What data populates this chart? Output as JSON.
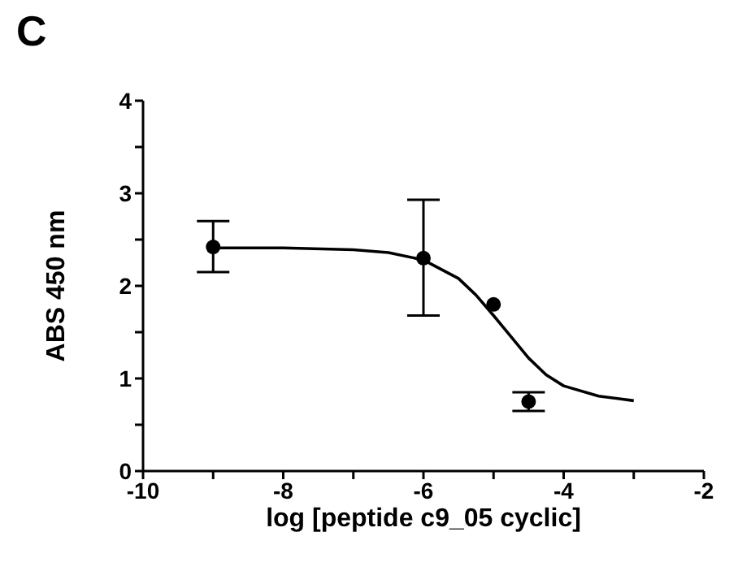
{
  "chart_data": {
    "type": "scatter",
    "xlabel": "log [peptide c9_05 cyclic]",
    "ylabel": "ABS 450 nm",
    "annotations": [
      "C"
    ],
    "xlim": [
      -10,
      -2
    ],
    "xticks": [
      -10,
      {
        "value": -9,
        "label": null
      },
      -8,
      {
        "value": -7,
        "label": null
      },
      -6,
      {
        "value": -5,
        "label": null
      },
      -4,
      {
        "value": -3,
        "label": null
      },
      -2
    ],
    "ylim": [
      0,
      4
    ],
    "yticks": [
      0,
      {
        "value": 0.5,
        "label": null
      },
      1,
      {
        "value": 1.5,
        "label": null
      },
      2,
      {
        "value": 2.5,
        "label": null
      },
      3,
      {
        "value": 3.5,
        "label": null
      },
      4
    ],
    "series": [
      {
        "color": "#000000",
        "marker": "circle",
        "x": [
          -9,
          -6,
          -5,
          -4.5
        ],
        "values": [
          2.42,
          2.3,
          1.8,
          0.75
        ],
        "errors": [
          [
            2.15,
            2.7
          ],
          [
            1.68,
            2.93
          ],
          null,
          [
            0.65,
            0.85
          ]
        ]
      },
      {
        "type": "line",
        "color": "#000000",
        "marker": "none",
        "line_style": "solid",
        "x": [
          -9,
          -8,
          -7,
          -6.5,
          -6,
          -5.5,
          -5.25,
          -5,
          -4.75,
          -4.5,
          -4.25,
          -4,
          -3.5,
          -3
        ],
        "values": [
          2.41,
          2.41,
          2.39,
          2.36,
          2.28,
          2.08,
          1.9,
          1.68,
          1.45,
          1.22,
          1.04,
          0.92,
          0.81,
          0.76
        ]
      }
    ]
  }
}
